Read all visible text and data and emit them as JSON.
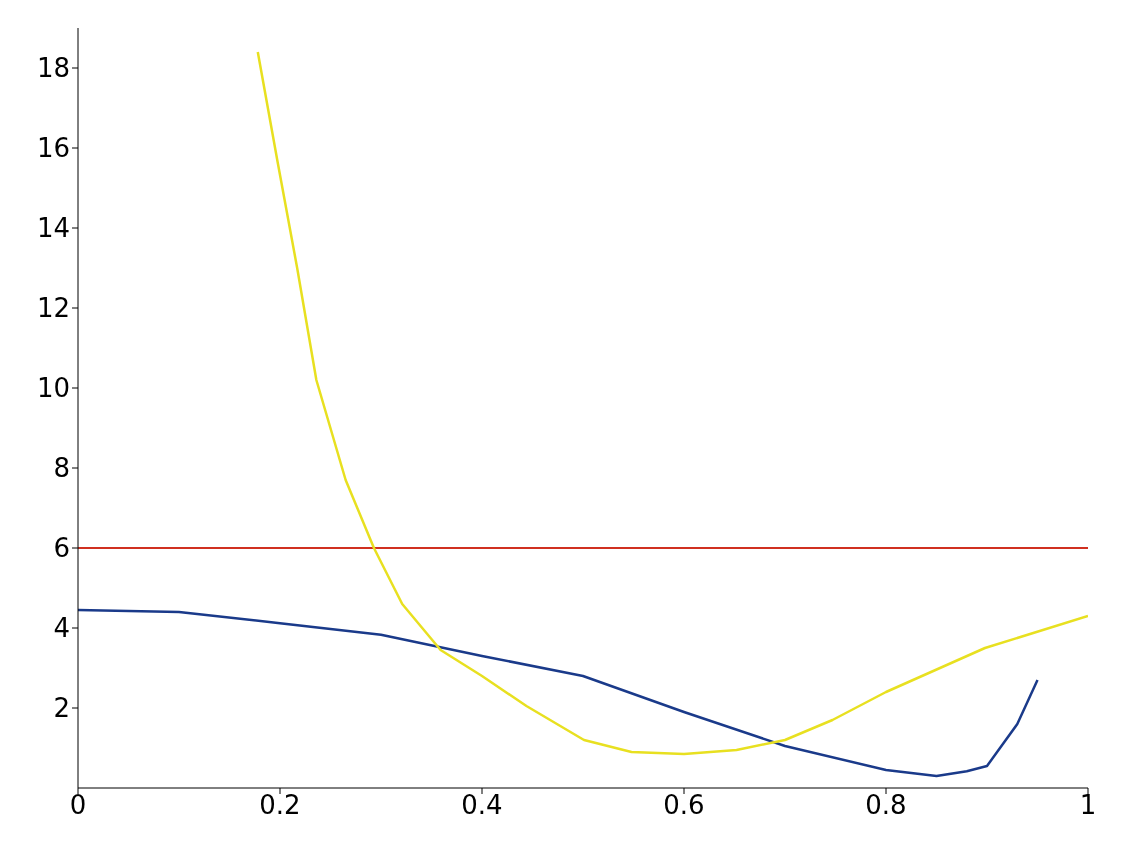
{
  "chart_data": {
    "type": "line",
    "xlim": [
      0,
      1
    ],
    "ylim": [
      0,
      19
    ],
    "xticks": [
      0,
      0.2,
      0.4,
      0.6,
      0.8,
      1
    ],
    "yticks": [
      2,
      4,
      6,
      8,
      10,
      12,
      14,
      16,
      18
    ],
    "grid": false,
    "legend": false,
    "marker": "none",
    "line_style": "solid",
    "ref_lines": [
      {
        "axis": "y",
        "value": 6,
        "color": "#d03020"
      }
    ],
    "series": [
      {
        "color": "#1a3a8a",
        "x": [
          0,
          0.1,
          0.2,
          0.3,
          0.4,
          0.5,
          0.6,
          0.7,
          0.8,
          0.85,
          0.88,
          0.9,
          0.93,
          0.95
        ],
        "values": [
          4.45,
          4.4,
          4.12,
          3.83,
          3.3,
          2.8,
          1.9,
          1.05,
          0.45,
          0.3,
          0.42,
          0.55,
          1.6,
          2.7
        ]
      },
      {
        "color": "#e8e020",
        "x": [
          0.178,
          0.198,
          0.217,
          0.236,
          0.265,
          0.293,
          0.321,
          0.359,
          0.4,
          0.444,
          0.501,
          0.548,
          0.6,
          0.652,
          0.7,
          0.747,
          0.8,
          0.898,
          1
        ],
        "values": [
          18.4,
          15.6,
          13,
          10.2,
          7.7,
          6,
          4.6,
          3.45,
          2.8,
          2.05,
          1.2,
          0.9,
          0.85,
          0.95,
          1.2,
          1.7,
          2.4,
          3.5,
          4.3
        ]
      }
    ]
  }
}
